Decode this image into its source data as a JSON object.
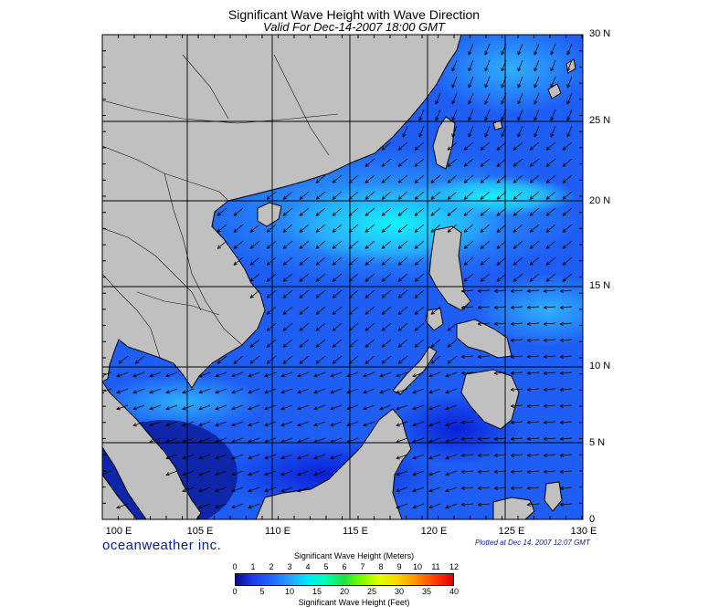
{
  "title": "Significant Wave Height with Wave Direction",
  "subtitle": "Valid For Dec-14-2007 18:00 GMT",
  "map": {
    "region": "South China Sea",
    "lon_range": [
      99,
      130
    ],
    "lat_range": [
      0,
      30
    ],
    "lon_labels": [
      "100 E",
      "105 E",
      "110 E",
      "115 E",
      "120 E",
      "125 E",
      "130 E"
    ],
    "lat_labels": [
      "30 N",
      "25 N",
      "20 N",
      "15 N",
      "10 N",
      "5 N",
      "0"
    ],
    "land_color": "#c0c0c0",
    "grid": true
  },
  "branding": "oceanweather inc.",
  "plotted": "Plotted at Dec 14, 2007 12:07 GMT",
  "legend": {
    "title_meters": "Significant Wave Height (Meters)",
    "title_feet": "Significant Wave Height (Feet)",
    "meters_ticks": [
      "0",
      "1",
      "2",
      "3",
      "4",
      "5",
      "6",
      "7",
      "8",
      "9",
      "10",
      "11",
      "12"
    ],
    "feet_ticks": [
      "0",
      "5",
      "10",
      "15",
      "20",
      "25",
      "30",
      "35",
      "40"
    ]
  }
}
